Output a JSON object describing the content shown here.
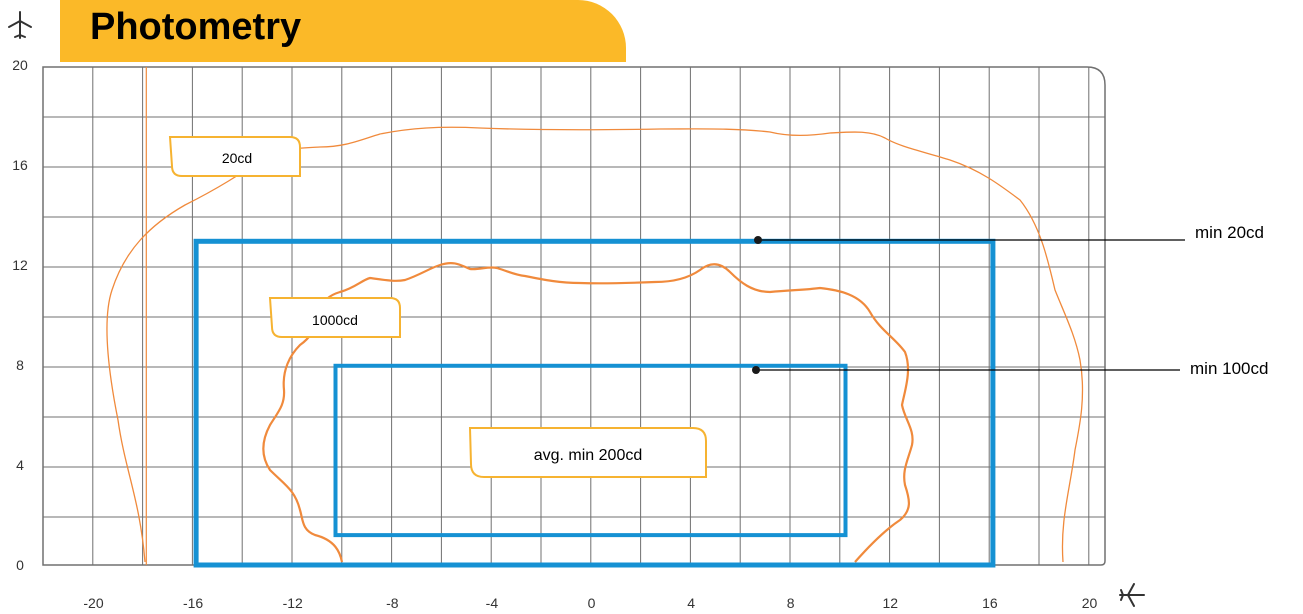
{
  "header": {
    "title": "Photometry"
  },
  "icons": {
    "y_axis_icon": "airplane-up-icon",
    "x_axis_icon": "airplane-right-icon"
  },
  "colors": {
    "accent": "#fbb928",
    "grid": "#707070",
    "contour": "#f08a3c",
    "zone": "#1591d3",
    "label_box": "#f6b331",
    "leader": "#000000"
  },
  "chart_data": {
    "type": "diagram",
    "xlim": [
      -20,
      20
    ],
    "ylim": [
      0,
      20
    ],
    "x_ticks": [
      "-20",
      "-16",
      "-12",
      "-8",
      "-4",
      "0",
      "4",
      "8",
      "12",
      "16",
      "20"
    ],
    "y_ticks": [
      "0",
      "4",
      "8",
      "12",
      "16",
      "20"
    ],
    "grid": true,
    "reference_line_x": -18,
    "zones": [
      {
        "label": "min 20cd",
        "x": [
          -16,
          16
        ],
        "y": [
          0,
          13
        ]
      },
      {
        "label": "min 100cd",
        "x": [
          -10,
          10
        ],
        "y": [
          1.2,
          7.8
        ]
      }
    ],
    "isocandela": [
      {
        "label": "20cd"
      },
      {
        "label": "1000cd"
      }
    ],
    "center_label": "avg. min 200cd"
  }
}
